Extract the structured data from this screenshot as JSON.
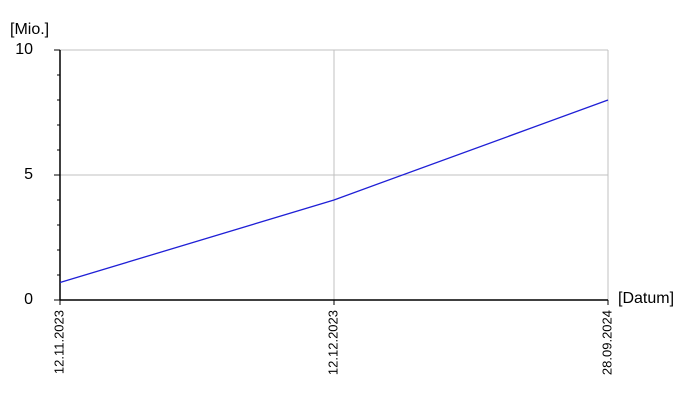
{
  "chart_data": {
    "type": "line",
    "y_axis_label": "[Mio.]",
    "x_axis_label": "[Datum]",
    "categories": [
      "12.11.2023",
      "12.12.2023",
      "28.09.2024"
    ],
    "series": [
      {
        "color": "#1f1fd6",
        "values": [
          0.7,
          4.0,
          8.0
        ]
      }
    ],
    "ylim": [
      0,
      10
    ],
    "yticks": [
      0,
      5,
      10
    ],
    "y_minor_ticks": [
      1,
      2,
      3,
      4,
      6,
      7,
      8,
      9
    ],
    "grid": true
  }
}
